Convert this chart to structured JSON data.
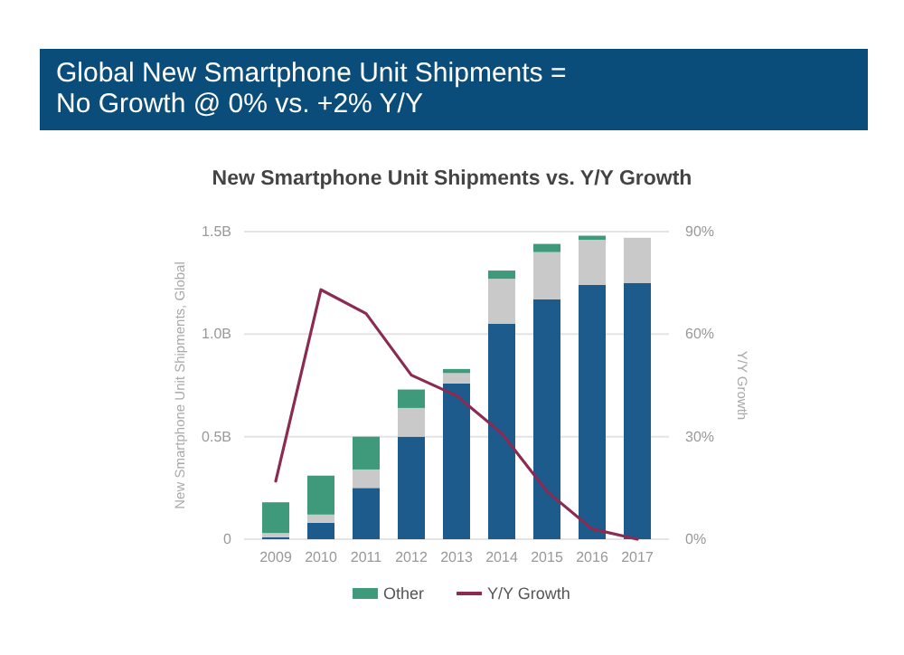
{
  "chart_data": {
    "type": "bar",
    "title": "Global New Smartphone Unit Shipments =\nNo Growth @ 0% vs. +2% Y/Y",
    "subtitle": "New Smartphone Unit Shipments vs. Y/Y Growth",
    "ylabel": "New Smartphone Unit Shipments, Global",
    "y2label": "Y/Y Growth",
    "categories": [
      "2009",
      "2010",
      "2011",
      "2012",
      "2013",
      "2014",
      "2015",
      "2016",
      "2017"
    ],
    "stacked": true,
    "series": [
      {
        "color": "#1d5b8c",
        "values": [
          0.01,
          0.08,
          0.25,
          0.5,
          0.76,
          1.05,
          1.17,
          1.24,
          1.25
        ]
      },
      {
        "color": "#c9c9c9",
        "values": [
          0.02,
          0.04,
          0.09,
          0.14,
          0.05,
          0.22,
          0.23,
          0.22,
          0.22
        ]
      },
      {
        "name": "Other",
        "color": "#3f9a7c",
        "values": [
          0.15,
          0.19,
          0.16,
          0.09,
          0.02,
          0.04,
          0.04,
          0.02,
          0
        ]
      },
      {
        "name": "Y/Y Growth",
        "type": "line",
        "axis": "y2",
        "color": "#8c2b52",
        "values": [
          17,
          73,
          66,
          48,
          42,
          31,
          14,
          3,
          0
        ]
      }
    ],
    "ylim": [
      0,
      1.5
    ],
    "yticks": [
      {
        "value": 0,
        "label": "0"
      },
      {
        "value": 0.5,
        "label": "0.5B"
      },
      {
        "value": 1,
        "label": "1.0B"
      },
      {
        "value": 1.5,
        "label": "1.5B"
      }
    ],
    "y2lim": [
      0,
      90
    ],
    "y2ticks": [
      {
        "value": 0,
        "label": "0%"
      },
      {
        "value": 30,
        "label": "30%"
      },
      {
        "value": 60,
        "label": "60%"
      },
      {
        "value": 90,
        "label": "90%"
      }
    ],
    "grid": "y",
    "legend": "bottom",
    "marker": "none",
    "line_style": "solid"
  }
}
